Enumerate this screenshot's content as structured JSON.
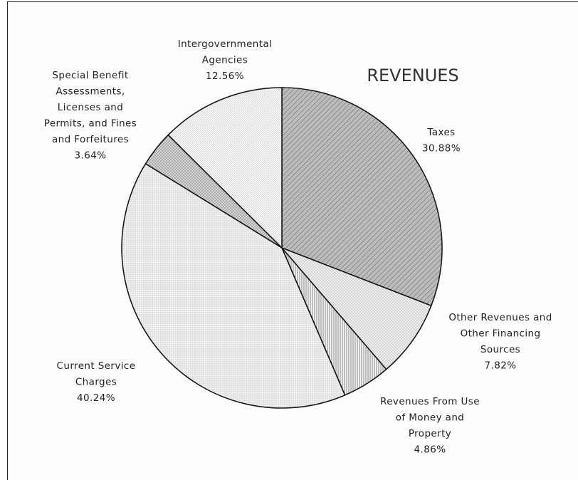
{
  "chart_data": {
    "type": "pie",
    "title": "REVENUES",
    "slices": [
      {
        "label_lines": [
          "Taxes",
          "30.88%"
        ],
        "value": 30.88,
        "fill": "#b4b4b4",
        "pattern": "diag-heavy"
      },
      {
        "label_lines": [
          "Other Revenues and",
          "Other Financing",
          "Sources",
          "7.82%"
        ],
        "value": 7.82,
        "fill": "#f0f0f0",
        "pattern": "cross-light"
      },
      {
        "label_lines": [
          "Revenues From Use",
          "of Money and",
          "Property",
          "4.86%"
        ],
        "value": 4.86,
        "fill": "#e2e2e2",
        "pattern": "vertical"
      },
      {
        "label_lines": [
          "Current Service",
          "Charges",
          "40.24%"
        ],
        "value": 40.24,
        "fill": "#e8e8e8",
        "pattern": "dots"
      },
      {
        "label_lines": [
          "Special Benefit",
          "Assessments,",
          "Licenses and",
          "Permits, and Fines",
          "and Forfeitures",
          "3.64%"
        ],
        "value": 3.64,
        "fill": "#c9c9c9",
        "pattern": "cross"
      },
      {
        "label_lines": [
          "Intergovernmental",
          "Agencies",
          "12.56%"
        ],
        "value": 12.56,
        "fill": "#f7f7f7",
        "pattern": "cross-fine"
      }
    ]
  }
}
